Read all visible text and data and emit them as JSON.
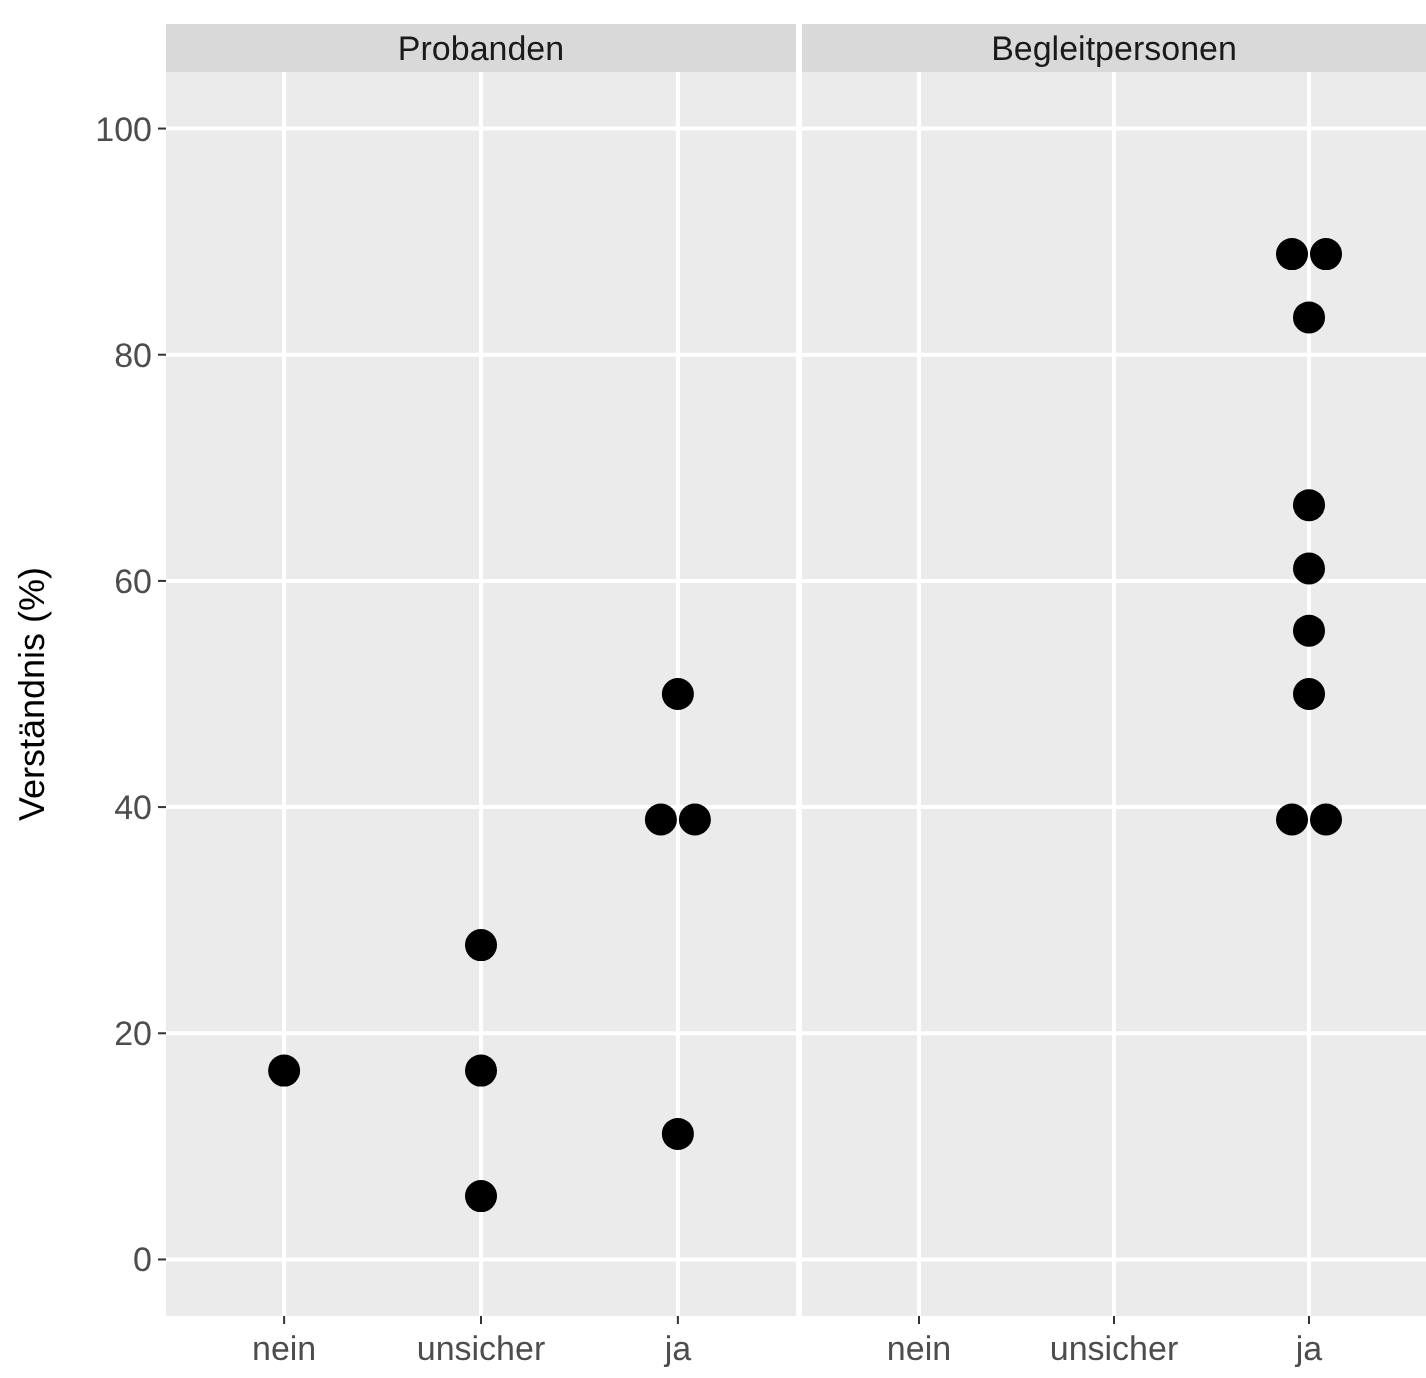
{
  "chart_data": [
    {
      "type": "scatter",
      "title": "Probanden",
      "ylabel": "Verständnis (%)",
      "categories": [
        "nein",
        "unsicher",
        "ja"
      ],
      "ylim": [
        -5,
        105
      ],
      "yticks": [
        0,
        20,
        40,
        60,
        80,
        100
      ],
      "grid": true,
      "marker": "circle",
      "series": [
        {
          "color": "#000000",
          "x": [
            "nein",
            "unsicher",
            "unsicher",
            "unsicher",
            "ja",
            "ja",
            "ja",
            "ja"
          ],
          "values": [
            16.7,
            27.8,
            16.7,
            5.6,
            50,
            38.9,
            38.9,
            11.1
          ]
        }
      ]
    },
    {
      "type": "scatter",
      "title": "Begleitpersonen",
      "categories": [
        "nein",
        "unsicher",
        "ja"
      ],
      "ylim": [
        -5,
        105
      ],
      "yticks": [
        0,
        20,
        40,
        60,
        80,
        100
      ],
      "grid": true,
      "marker": "circle",
      "tick_labels": "x",
      "series": [
        {
          "color": "#000000",
          "x": [
            "ja",
            "ja",
            "ja",
            "ja",
            "ja",
            "ja",
            "ja",
            "ja",
            "ja"
          ],
          "values": [
            88.9,
            88.9,
            83.3,
            66.7,
            61.1,
            55.6,
            50,
            38.9,
            38.9
          ]
        }
      ]
    }
  ]
}
